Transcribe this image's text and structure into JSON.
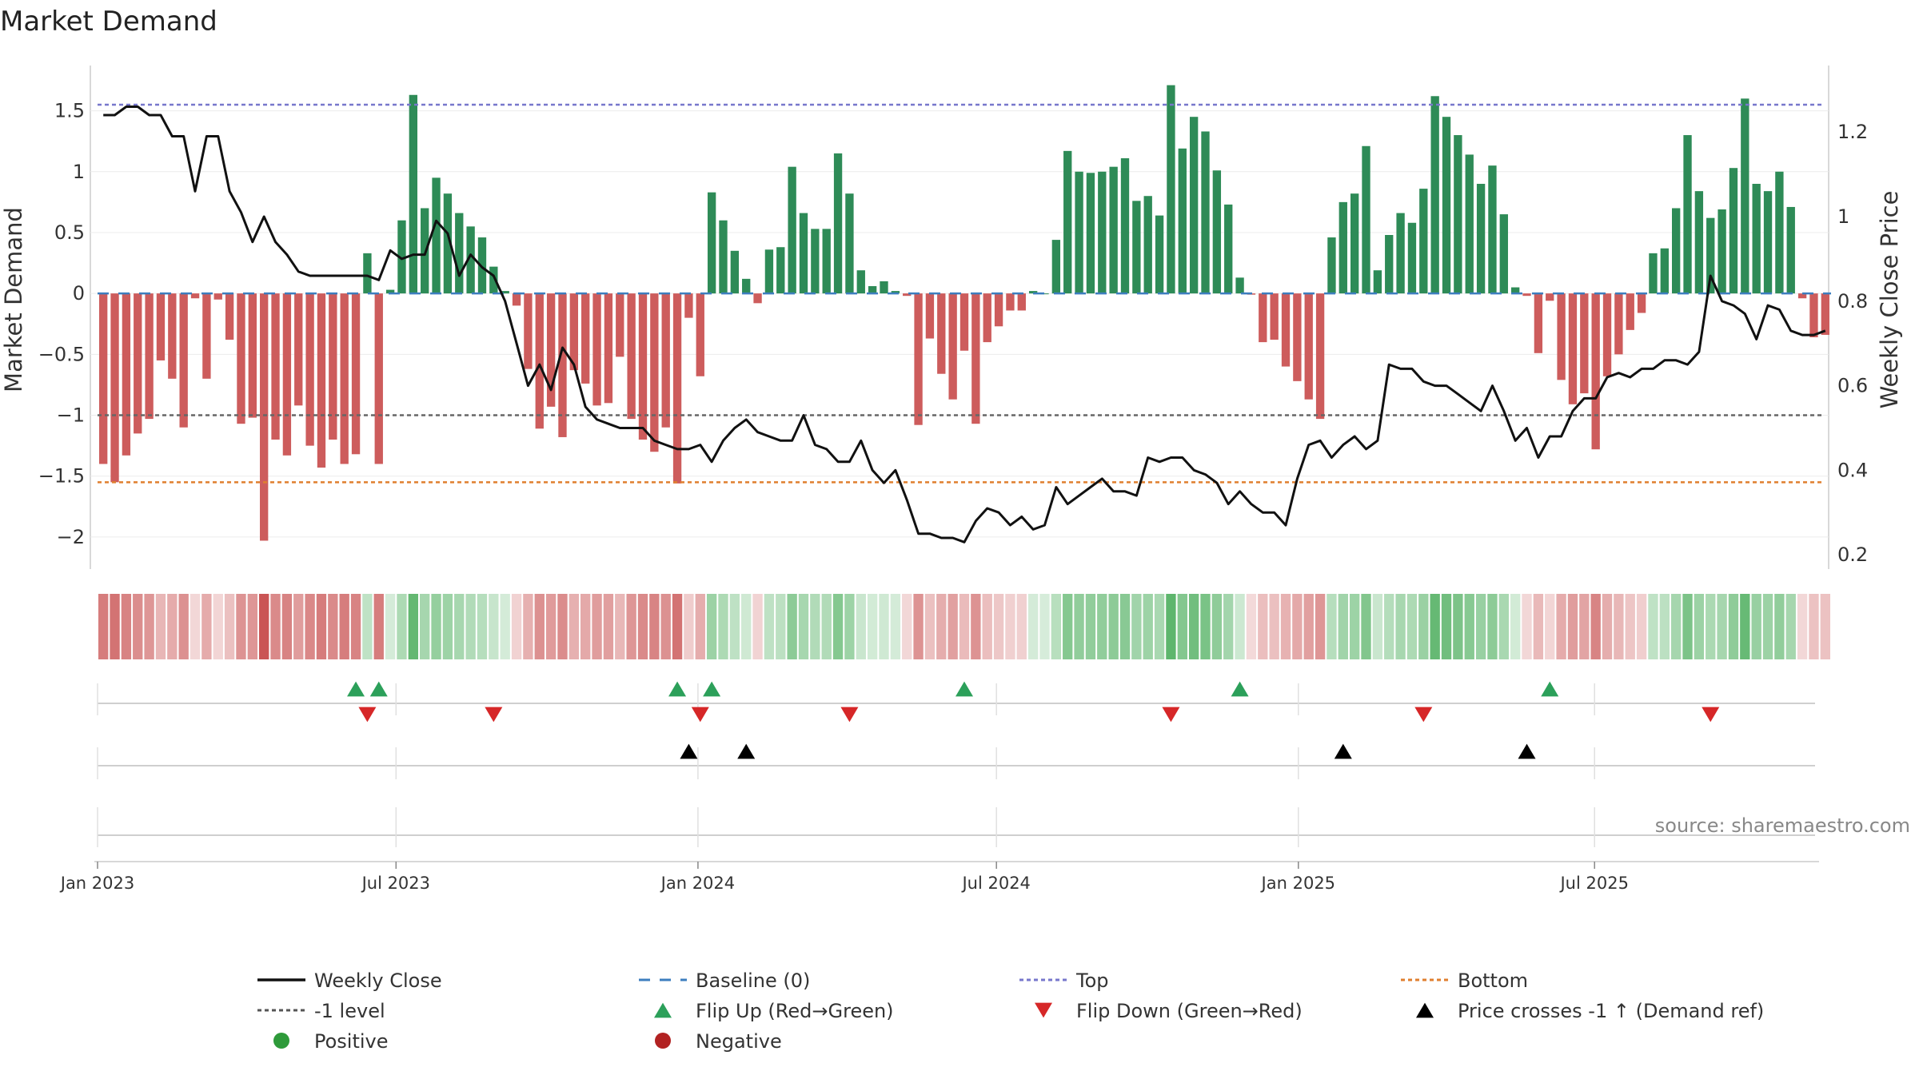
{
  "chart_data": {
    "type": "bar",
    "title": "Market Demand",
    "ylabel": "Market Demand",
    "y2label": "Weekly Close Price",
    "ylim": [
      -2.25,
      1.95
    ],
    "y2lim": [
      0.17,
      1.38
    ],
    "yticks": [
      1.5,
      1,
      0.5,
      0,
      -0.5,
      -1,
      -1.5,
      -2
    ],
    "ytick_labels": [
      "1.5",
      "1",
      "0.5",
      "0",
      "−0.5",
      "−1",
      "−1.5",
      "−2"
    ],
    "y2ticks": [
      1.2,
      1.0,
      0.8,
      0.6,
      0.4,
      0.2
    ],
    "y2tick_labels": [
      "1.2",
      "1",
      "0.8",
      "0.6",
      "0.4",
      "0.2"
    ],
    "xticks": [
      {
        "week": 0,
        "label": "Jan 2023"
      },
      {
        "week": 26,
        "label": "Jul 2023"
      },
      {
        "week": 52.3,
        "label": "Jan 2024"
      },
      {
        "week": 78.3,
        "label": "Jul 2024"
      },
      {
        "week": 104.6,
        "label": "Jan 2025"
      },
      {
        "week": 130.4,
        "label": "Jul 2025"
      }
    ],
    "reference_lines": [
      {
        "name": "Top",
        "value": 1.55,
        "color": "#7777cc"
      },
      {
        "name": "-1 level",
        "value": -1,
        "color": "#666666"
      },
      {
        "name": "Bottom",
        "value": -1.55,
        "color": "#e07f2f"
      }
    ],
    "demand": [
      -1.4,
      -1.55,
      -1.33,
      -1.15,
      -1.03,
      -0.55,
      -0.7,
      -1.1,
      -0.04,
      -0.7,
      -0.05,
      -0.38,
      -1.07,
      -1.02,
      -2.03,
      -1.2,
      -1.33,
      -0.92,
      -1.25,
      -1.43,
      -1.2,
      -1.4,
      -1.32,
      0.33,
      -1.4,
      0.03,
      0.6,
      1.63,
      0.7,
      0.95,
      0.82,
      0.66,
      0.55,
      0.46,
      0.22,
      0.02,
      -0.1,
      -0.62,
      -1.11,
      -0.93,
      -1.18,
      -0.63,
      -0.74,
      -0.92,
      -0.9,
      -0.52,
      -1.03,
      -1.2,
      -1.3,
      -1.1,
      -1.56,
      -0.2,
      -0.68,
      0.83,
      0.6,
      0.35,
      0.12,
      -0.08,
      0.36,
      0.38,
      1.04,
      0.66,
      0.53,
      0.53,
      1.15,
      0.82,
      0.19,
      0.06,
      0.1,
      0.02,
      -0.02,
      -1.08,
      -0.37,
      -0.66,
      -0.87,
      -0.47,
      -1.07,
      -0.4,
      -0.27,
      -0.14,
      -0.14,
      0.02,
      0.0,
      0.44,
      1.17,
      1.0,
      0.99,
      1.0,
      1.04,
      1.11,
      0.76,
      0.8,
      0.64,
      1.71,
      1.19,
      1.45,
      1.33,
      1.01,
      0.73,
      0.13,
      -0.01,
      -0.4,
      -0.38,
      -0.6,
      -0.72,
      -0.87,
      -1.03,
      0.46,
      0.75,
      0.82,
      1.21,
      0.19,
      0.48,
      0.66,
      0.58,
      0.86,
      1.62,
      1.45,
      1.3,
      1.14,
      0.9,
      1.05,
      0.65,
      0.05,
      -0.02,
      -0.49,
      -0.06,
      -0.71,
      -0.91,
      -0.82,
      -1.28,
      -0.68,
      -0.5,
      -0.3,
      -0.16,
      0.33,
      0.37,
      0.7,
      1.3,
      0.84,
      0.62,
      0.69,
      1.03,
      1.6,
      0.9,
      0.84,
      1.0,
      0.71,
      -0.04,
      -0.36,
      -0.34
    ],
    "weekly_close": [
      1.24,
      1.24,
      1.26,
      1.26,
      1.24,
      1.24,
      1.19,
      1.19,
      1.06,
      1.19,
      1.19,
      1.06,
      1.01,
      0.94,
      1.0,
      0.94,
      0.91,
      0.87,
      0.86,
      0.86,
      0.86,
      0.86,
      0.86,
      0.86,
      0.85,
      0.92,
      0.9,
      0.91,
      0.91,
      0.99,
      0.96,
      0.86,
      0.91,
      0.88,
      0.86,
      0.8,
      0.7,
      0.6,
      0.65,
      0.59,
      0.69,
      0.65,
      0.55,
      0.52,
      0.51,
      0.5,
      0.5,
      0.5,
      0.47,
      0.46,
      0.45,
      0.45,
      0.46,
      0.42,
      0.47,
      0.5,
      0.52,
      0.49,
      0.48,
      0.47,
      0.47,
      0.53,
      0.46,
      0.45,
      0.42,
      0.42,
      0.47,
      0.4,
      0.37,
      0.4,
      0.33,
      0.25,
      0.25,
      0.24,
      0.24,
      0.23,
      0.28,
      0.31,
      0.3,
      0.27,
      0.29,
      0.26,
      0.27,
      0.36,
      0.32,
      0.34,
      0.36,
      0.38,
      0.35,
      0.35,
      0.34,
      0.43,
      0.42,
      0.43,
      0.43,
      0.4,
      0.39,
      0.37,
      0.32,
      0.35,
      0.32,
      0.3,
      0.3,
      0.27,
      0.38,
      0.46,
      0.47,
      0.43,
      0.46,
      0.48,
      0.45,
      0.47,
      0.65,
      0.64,
      0.64,
      0.61,
      0.6,
      0.6,
      0.58,
      0.56,
      0.54,
      0.6,
      0.54,
      0.47,
      0.5,
      0.43,
      0.48,
      0.48,
      0.54,
      0.57,
      0.57,
      0.62,
      0.63,
      0.62,
      0.64,
      0.64,
      0.66,
      0.66,
      0.65,
      0.68,
      0.86,
      0.8,
      0.79,
      0.77,
      0.71,
      0.79,
      0.78,
      0.73,
      0.72,
      0.72,
      0.73
    ],
    "flip_up_weeks": [
      22,
      24,
      50,
      53,
      75,
      99,
      126
    ],
    "flip_down_weeks": [
      23,
      34,
      52,
      65,
      93,
      115,
      140
    ],
    "price_cross_weeks": [
      51,
      56,
      108,
      124
    ],
    "source": "source: sharemaestro.com",
    "colors": {
      "positive_bar": "#2e8b57",
      "negative_bar": "#cd5c5c",
      "line": "#111111",
      "baseline": "#3d7ebf",
      "flip_up": "#2ca05a",
      "flip_down": "#d62728",
      "cross": "#000000",
      "positive_dot": "#2e9a3a",
      "negative_dot": "#b22222"
    }
  },
  "legend": [
    {
      "label": "Weekly Close",
      "type": "line-solid",
      "color": "#111111"
    },
    {
      "label": "Baseline (0)",
      "type": "line-dashed",
      "color": "#3d7ebf"
    },
    {
      "label": "Top",
      "type": "line-dotted",
      "color": "#7777cc"
    },
    {
      "label": "Bottom",
      "type": "line-dotted",
      "color": "#e07f2f"
    },
    {
      "label": "-1 level",
      "type": "line-dotted",
      "color": "#555555"
    },
    {
      "label": "Flip Up (Red→Green)",
      "type": "tri-up",
      "color": "#2ca05a"
    },
    {
      "label": "Flip Down (Green→Red)",
      "type": "tri-down",
      "color": "#d62728"
    },
    {
      "label": "Price crosses -1 ↑ (Demand ref)",
      "type": "tri-up",
      "color": "#000000"
    },
    {
      "label": "Positive",
      "type": "dot",
      "color": "#2e9a3a"
    },
    {
      "label": "Negative",
      "type": "dot",
      "color": "#b22222"
    }
  ]
}
